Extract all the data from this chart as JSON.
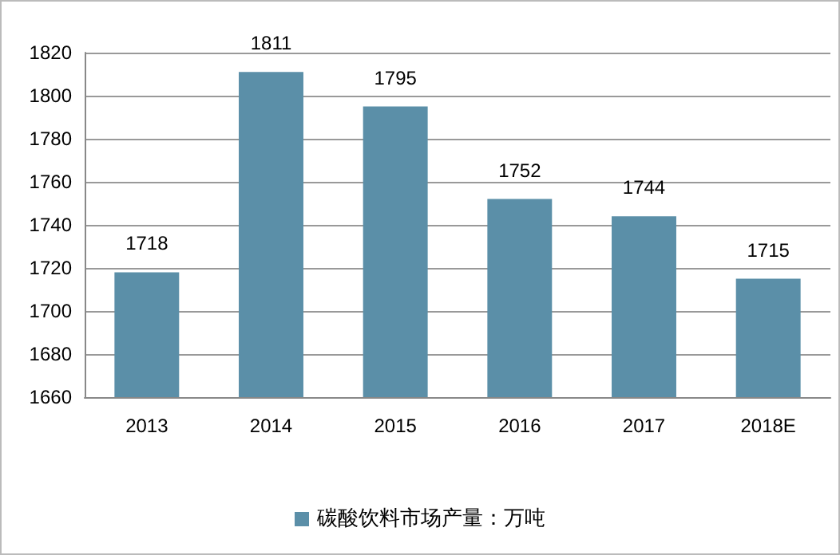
{
  "chart_data": {
    "type": "bar",
    "categories": [
      "2013",
      "2014",
      "2015",
      "2016",
      "2017",
      "2018E"
    ],
    "series": [
      {
        "name": "碳酸饮料市场产量：万吨",
        "color": "#5b8fa8",
        "values": [
          1718,
          1811,
          1795,
          1752,
          1744,
          1715
        ]
      }
    ],
    "ylim": [
      1660,
      1820
    ],
    "yticks": [
      1660,
      1680,
      1700,
      1720,
      1740,
      1760,
      1780,
      1800,
      1820
    ],
    "grid": "y",
    "legend": "bottom",
    "data_labels": true
  }
}
